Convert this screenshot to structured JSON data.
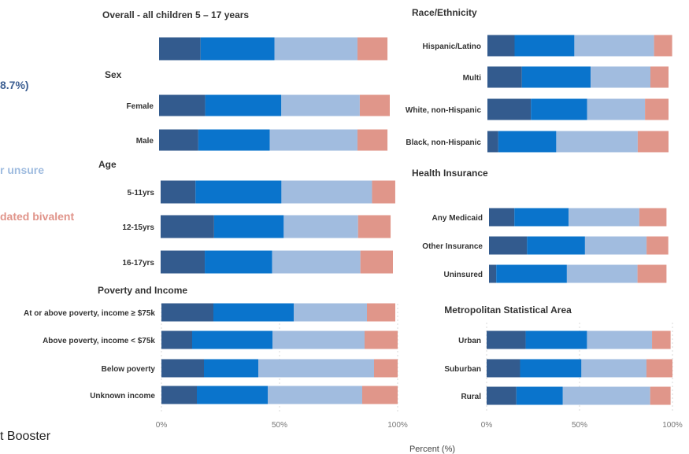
{
  "left_fragments": [
    {
      "text": "8.7%)",
      "color": "#3d5f92"
    },
    {
      "text": "r unsure",
      "color": "#9ebbdf"
    },
    {
      "text": "dated bivalent",
      "color": "#e0948a"
    }
  ],
  "bottom_fragment": "t Booster",
  "colors": {
    "series": [
      "#335b8e",
      "#0a74cc",
      "#a1bcdf",
      "#e0968a"
    ],
    "text": "#333333",
    "tick": "#777777",
    "grid": "#d9d9d9"
  },
  "chart_data": [
    {
      "type": "bar",
      "orientation": "horizontal",
      "stacked": true,
      "title": "Overall - all children 5 – 17 years",
      "xlim": [
        0,
        100
      ],
      "xticks": [],
      "xlabel": "",
      "categories": [
        ""
      ],
      "values": [
        [
          18,
          32,
          36,
          13
        ]
      ]
    },
    {
      "type": "bar",
      "orientation": "horizontal",
      "stacked": true,
      "title": "Sex",
      "xlim": [
        0,
        100
      ],
      "xticks": [],
      "xlabel": "",
      "categories": [
        "Female",
        "Male"
      ],
      "values": [
        [
          20,
          33,
          34,
          13
        ],
        [
          17,
          31,
          38,
          13
        ]
      ]
    },
    {
      "type": "bar",
      "orientation": "horizontal",
      "stacked": true,
      "title": "Age",
      "xlim": [
        0,
        100
      ],
      "xticks": [],
      "xlabel": "",
      "categories": [
        "5-11yrs",
        "12-15yrs",
        "16-17yrs"
      ],
      "values": [
        [
          15,
          37,
          39,
          10
        ],
        [
          23,
          30,
          32,
          14
        ],
        [
          19,
          29,
          38,
          14
        ]
      ]
    },
    {
      "type": "bar",
      "orientation": "horizontal",
      "stacked": true,
      "title": "Poverty and Income",
      "xlim": [
        0,
        100
      ],
      "xticks": [
        "0%",
        "50%",
        "100%"
      ],
      "xlabel": "",
      "categories": [
        "At or above poverty, income ≥ $75k",
        "Above poverty, income < $75k",
        "Below poverty",
        "Unknown income"
      ],
      "values": [
        [
          22,
          34,
          31,
          12
        ],
        [
          13,
          34,
          39,
          14
        ],
        [
          18,
          23,
          49,
          10
        ],
        [
          15,
          30,
          40,
          15
        ]
      ]
    },
    {
      "type": "bar",
      "orientation": "horizontal",
      "stacked": true,
      "title": "Race/Ethnicity",
      "xlim": [
        0,
        100
      ],
      "xticks": [],
      "xlabel": "",
      "categories": [
        "Hispanic/Latino",
        "Multi",
        "White, non-Hispanic",
        "Black, non-Hispanic"
      ],
      "values": [
        [
          15,
          33,
          44,
          10
        ],
        [
          19,
          38,
          33,
          10
        ],
        [
          24,
          31,
          32,
          13
        ],
        [
          6,
          32,
          45,
          17
        ]
      ]
    },
    {
      "type": "bar",
      "orientation": "horizontal",
      "stacked": true,
      "title": "Health Insurance",
      "xlim": [
        0,
        100
      ],
      "xticks": [],
      "xlabel": "",
      "categories": [
        "Any Medicaid",
        "Other Insurance",
        "Uninsured"
      ],
      "values": [
        [
          14,
          30,
          39,
          15
        ],
        [
          21,
          32,
          34,
          12
        ],
        [
          4,
          39,
          39,
          16
        ]
      ]
    },
    {
      "type": "bar",
      "orientation": "horizontal",
      "stacked": true,
      "title": "Metropolitan Statistical Area",
      "xlim": [
        0,
        100
      ],
      "xticks": [
        "0%",
        "50%",
        "100%"
      ],
      "xlabel": "Percent (%)",
      "categories": [
        "Urban",
        "Suburban",
        "Rural"
      ],
      "values": [
        [
          21,
          33,
          35,
          10
        ],
        [
          18,
          33,
          35,
          14
        ],
        [
          16,
          25,
          47,
          11
        ]
      ]
    }
  ]
}
